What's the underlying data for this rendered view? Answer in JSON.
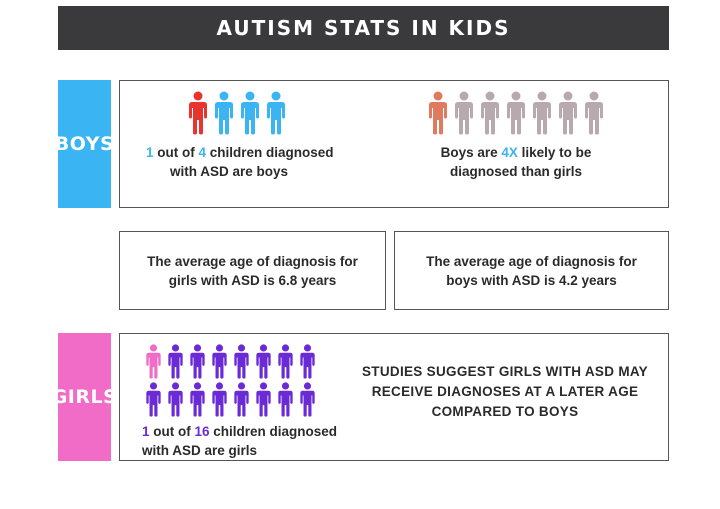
{
  "header": {
    "title": "AUTISM STATS IN KIDS"
  },
  "tabs": {
    "boys": "BOYS",
    "girls": "GIRLS"
  },
  "boys_panel": {
    "ratio": {
      "num": "1",
      "mid": " out of ",
      "den": "4",
      "line1_tail": " children diagnosed",
      "line2": "with ASD are boys"
    },
    "likelihood": {
      "pre": "Boys are ",
      "factor": "4X",
      "line1_tail": " likely to be",
      "line2": "diagnosed than girls"
    },
    "ratio_icons": {
      "highlight": 1,
      "total": 4,
      "highlight_color": "#e8342f",
      "base_color": "#3ab4f2",
      "icon": "person-icon"
    },
    "likelihood_icons": {
      "highlight": 1,
      "total": 7,
      "highlight_color": "#e07a5f",
      "base_color": "#b8a9ae",
      "icon": "person-icon"
    }
  },
  "avg_age": {
    "girls": {
      "line1": "The average age of diagnosis for",
      "line2": "girls with ASD is 6.8 years"
    },
    "boys": {
      "line1": "The average age of diagnosis for",
      "line2": "boys with ASD is 4.2 years"
    }
  },
  "girls_panel": {
    "ratio": {
      "num": "1",
      "mid": " out of ",
      "den": "16",
      "line1_tail": " children diagnosed",
      "line2": "with ASD are girls"
    },
    "icons": {
      "highlight": 1,
      "total": 16,
      "highlight_color": "#f06cc6",
      "base_color": "#6a2ad6",
      "icon": "person-icon"
    },
    "studies": {
      "line1": "STUDIES SUGGEST GIRLS WITH ASD MAY",
      "line2": "RECEIVE DIAGNOSES AT A LATER AGE",
      "line3": "COMPARED TO BOYS"
    }
  }
}
